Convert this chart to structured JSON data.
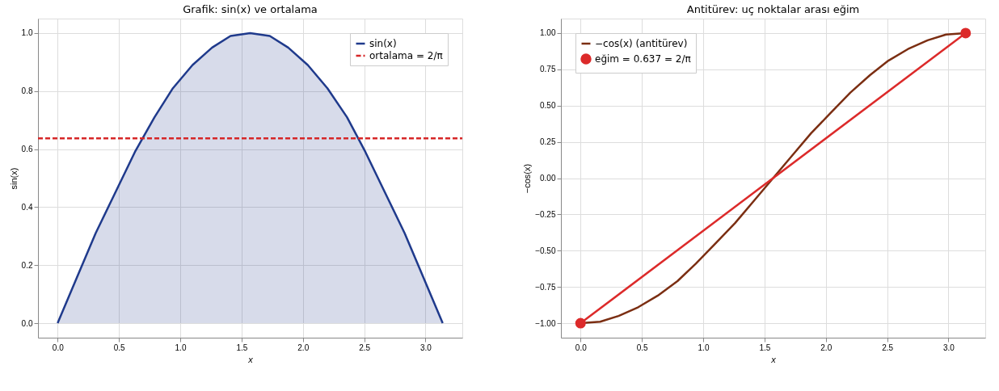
{
  "chart_data": [
    {
      "type": "line",
      "title": "Grafik: sin(x) ve ortalama",
      "xlabel": "x",
      "ylabel": "sin(x)",
      "x": [
        0,
        0.16,
        0.31,
        0.47,
        0.63,
        0.79,
        0.94,
        1.1,
        1.26,
        1.41,
        1.57,
        1.73,
        1.88,
        2.04,
        2.2,
        2.36,
        2.51,
        2.67,
        2.83,
        2.98,
        3.14
      ],
      "series": [
        {
          "type": "area",
          "name": "sin(x)",
          "color": "#1f3a8c",
          "values": [
            0,
            0.16,
            0.31,
            0.45,
            0.59,
            0.71,
            0.81,
            0.89,
            0.95,
            0.99,
            1.0,
            0.99,
            0.95,
            0.89,
            0.81,
            0.71,
            0.59,
            0.45,
            0.31,
            0.16,
            0
          ]
        },
        {
          "type": "line",
          "name": "ortalama = 2/π",
          "color": "#d62728",
          "line_style": "dashed",
          "x": [
            -0.16,
            3.3
          ],
          "values": [
            0.637,
            0.637
          ]
        }
      ],
      "xlim": [
        -0.16,
        3.3
      ],
      "ylim": [
        -0.05,
        1.05
      ],
      "xticks": [
        {
          "value": 0,
          "label": "0.0"
        },
        0.5,
        {
          "value": 1,
          "label": "1.0"
        },
        1.5,
        {
          "value": 2,
          "label": "2.0"
        },
        2.5,
        {
          "value": 3,
          "label": "3.0"
        }
      ],
      "yticks": [
        {
          "value": 0,
          "label": "0.0"
        },
        0.2,
        0.4,
        0.6,
        0.8,
        {
          "value": 1,
          "label": "1.0"
        }
      ],
      "grid": true,
      "legend": "top right"
    },
    {
      "type": "line",
      "title": "Antitürev: uç noktalar arası eğim",
      "xlabel": "x",
      "ylabel": "−cos(x)",
      "series": [
        {
          "name": "−cos(x) (antitürev)",
          "color": "#7b2e12",
          "marker": "none",
          "x": [
            0,
            0.16,
            0.31,
            0.47,
            0.63,
            0.79,
            0.94,
            1.1,
            1.26,
            1.41,
            1.57,
            1.73,
            1.88,
            2.04,
            2.2,
            2.36,
            2.51,
            2.67,
            2.83,
            2.98,
            3.14
          ],
          "values": [
            -1,
            -0.99,
            -0.95,
            -0.89,
            -0.81,
            -0.71,
            -0.59,
            -0.45,
            -0.31,
            -0.16,
            0,
            0.16,
            0.31,
            0.45,
            0.59,
            0.71,
            0.81,
            0.89,
            0.95,
            0.99,
            1
          ]
        },
        {
          "name": "eğim = 0.637 = 2/π",
          "color": "#dc2a2a",
          "marker": "circle",
          "x": [
            0,
            3.14
          ],
          "values": [
            -1,
            1
          ]
        }
      ],
      "xlim": [
        -0.16,
        3.3
      ],
      "ylim": [
        -1.1,
        1.1
      ],
      "xticks": [
        {
          "value": 0,
          "label": "0.0"
        },
        0.5,
        {
          "value": 1,
          "label": "1.0"
        },
        1.5,
        {
          "value": 2,
          "label": "2.0"
        },
        2.5,
        {
          "value": 3,
          "label": "3.0"
        }
      ],
      "yticks": [
        {
          "value": -1,
          "label": "−1.00"
        },
        {
          "value": -0.75,
          "label": "−0.75"
        },
        {
          "value": -0.5,
          "label": "−0.50"
        },
        {
          "value": -0.25,
          "label": "−0.25"
        },
        {
          "value": 0,
          "label": "0.00"
        },
        {
          "value": 0.25,
          "label": "0.25"
        },
        {
          "value": 0.5,
          "label": "0.50"
        },
        {
          "value": 0.75,
          "label": "0.75"
        },
        {
          "value": 1,
          "label": "1.00"
        }
      ],
      "grid": true,
      "legend": "top left",
      "line_style": "solid"
    }
  ]
}
